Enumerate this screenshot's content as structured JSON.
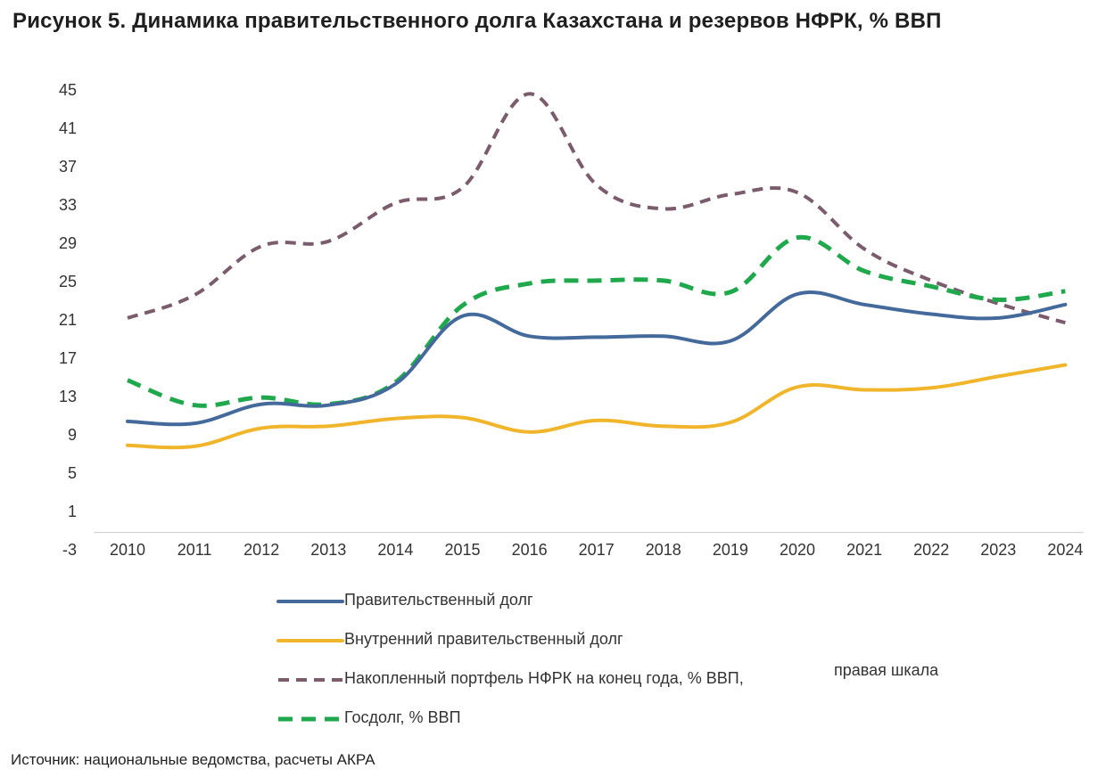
{
  "title": "Рисунок 5. Динамика правительственного долга Казахстана и резервов НФРК, % ВВП",
  "source": "Источник: национальные ведомства, расчеты АКРА",
  "legend_note": "правая шкала",
  "colors": {
    "gov_debt": "#44699b",
    "domestic_debt": "#f0b52a",
    "nfrk": "#7b5c6d",
    "state_debt": "#1fa94c"
  },
  "chart_data": {
    "type": "line",
    "title": "Рисунок 5. Динамика правительственного долга Казахстана и резервов НФРК, % ВВП",
    "xlabel": "",
    "ylabel": "",
    "ylim": [
      -3,
      45
    ],
    "yticks": [
      45,
      41,
      37,
      33,
      29,
      25,
      21,
      17,
      13,
      9,
      5,
      1,
      -3
    ],
    "categories": [
      "2010",
      "2011",
      "2012",
      "2013",
      "2014",
      "2015",
      "2016",
      "2017",
      "2018",
      "2019",
      "2020",
      "2021",
      "2022",
      "2023",
      "2024"
    ],
    "grid": false,
    "legend_position": "bottom",
    "series": [
      {
        "name": "Правительственный долг",
        "style": "solid",
        "values": [
          10.4,
          10.2,
          12.2,
          12.1,
          14.3,
          21.4,
          19.3,
          19.2,
          19.3,
          18.8,
          23.7,
          22.6,
          21.6,
          21.2,
          22.6
        ]
      },
      {
        "name": "Внутренний правительственный долг",
        "style": "solid",
        "values": [
          7.9,
          7.8,
          9.7,
          9.9,
          10.7,
          10.8,
          9.3,
          10.5,
          9.9,
          10.3,
          14.0,
          13.7,
          13.9,
          15.1,
          16.3
        ]
      },
      {
        "name": "Накопленный портфель НФРК на конец года, % ВВП,",
        "style": "dashed",
        "values": [
          21.2,
          23.6,
          28.7,
          29.2,
          33.2,
          34.8,
          44.6,
          35.1,
          32.6,
          34.1,
          34.3,
          28.4,
          25.1,
          22.7,
          20.7
        ]
      },
      {
        "name": "Госдолг, % ВВП",
        "style": "dashed",
        "values": [
          14.7,
          12.1,
          12.9,
          12.2,
          14.5,
          22.5,
          24.8,
          25.1,
          25.1,
          23.9,
          29.6,
          26.1,
          24.5,
          23.1,
          24.0
        ]
      }
    ]
  }
}
